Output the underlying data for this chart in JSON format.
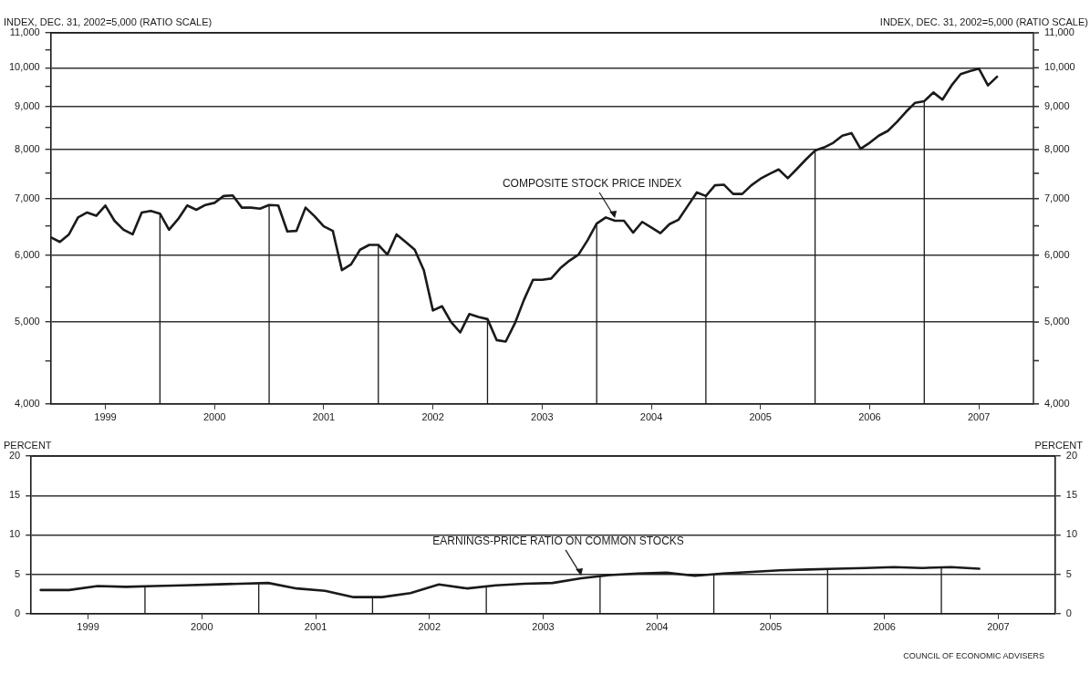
{
  "chart_data": [
    {
      "type": "line",
      "ylabel": "INDEX, DEC. 31, 2002=5,000 (RATIO SCALE)",
      "log": "y",
      "grid": "y",
      "line_style": "solid",
      "marker": "none",
      "x": [
        "1999-01",
        "1999-02",
        "1999-03",
        "1999-04",
        "1999-05",
        "1999-06",
        "1999-07",
        "1999-08",
        "1999-09",
        "1999-10",
        "1999-11",
        "1999-12",
        "2000-01",
        "2000-02",
        "2000-03",
        "2000-04",
        "2000-05",
        "2000-06",
        "2000-07",
        "2000-08",
        "2000-09",
        "2000-10",
        "2000-11",
        "2000-12",
        "2001-01",
        "2001-02",
        "2001-03",
        "2001-04",
        "2001-05",
        "2001-06",
        "2001-07",
        "2001-08",
        "2001-09",
        "2001-10",
        "2001-11",
        "2001-12",
        "2002-01",
        "2002-02",
        "2002-03",
        "2002-04",
        "2002-05",
        "2002-06",
        "2002-07",
        "2002-08",
        "2002-09",
        "2002-10",
        "2002-11",
        "2002-12",
        "2003-01",
        "2003-02",
        "2003-03",
        "2003-04",
        "2003-05",
        "2003-06",
        "2003-07",
        "2003-08",
        "2003-09",
        "2003-10",
        "2003-11",
        "2003-12",
        "2004-01",
        "2004-02",
        "2004-03",
        "2004-04",
        "2004-05",
        "2004-06",
        "2004-07",
        "2004-08",
        "2004-09",
        "2004-10",
        "2004-11",
        "2004-12",
        "2005-01",
        "2005-02",
        "2005-03",
        "2005-04",
        "2005-05",
        "2005-06",
        "2005-07",
        "2005-08",
        "2005-09",
        "2005-10",
        "2005-11",
        "2005-12",
        "2006-01",
        "2006-02",
        "2006-03",
        "2006-04",
        "2006-05",
        "2006-06",
        "2006-07",
        "2006-08",
        "2006-09",
        "2006-10",
        "2006-11",
        "2006-12",
        "2007-01",
        "2007-02",
        "2007-03",
        "2007-04",
        "2007-05",
        "2007-06",
        "2007-07",
        "2007-08",
        "2007-09"
      ],
      "series": [
        {
          "color": "#1a1a1a",
          "values": [
            6300,
            6220,
            6350,
            6650,
            6740,
            6680,
            6870,
            6590,
            6430,
            6350,
            6740,
            6770,
            6720,
            6430,
            6620,
            6870,
            6790,
            6880,
            6920,
            7050,
            7060,
            6830,
            6830,
            6810,
            6880,
            6870,
            6400,
            6410,
            6830,
            6670,
            6490,
            6410,
            5760,
            5850,
            6090,
            6170,
            6170,
            6010,
            6350,
            6220,
            6090,
            5760,
            5160,
            5220,
            5000,
            4860,
            5110,
            5070,
            5040,
            4760,
            4740,
            4980,
            5310,
            5610,
            5610,
            5630,
            5790,
            5910,
            6010,
            6250,
            6540,
            6650,
            6590,
            6590,
            6380,
            6570,
            6470,
            6370,
            6530,
            6610,
            6860,
            7120,
            7050,
            7260,
            7270,
            7090,
            7090,
            7260,
            7390,
            7490,
            7580,
            7400,
            7590,
            7790,
            7980,
            8050,
            8150,
            8310,
            8370,
            8020,
            8150,
            8310,
            8420,
            8630,
            8870,
            9090,
            9130,
            9350,
            9170,
            9530,
            9830,
            9910,
            9980,
            9530,
            9760
          ]
        }
      ],
      "xlim": [
        "1999-01",
        "2008-01"
      ],
      "xticks": [
        {
          "value": "1999-07",
          "label": "1999"
        },
        {
          "value": "2000-07",
          "label": "2000"
        },
        {
          "value": "2001-07",
          "label": "2001"
        },
        {
          "value": "2002-07",
          "label": "2002"
        },
        {
          "value": "2003-07",
          "label": "2003"
        },
        {
          "value": "2004-07",
          "label": "2004"
        },
        {
          "value": "2005-07",
          "label": "2005"
        },
        {
          "value": "2006-07",
          "label": "2006"
        },
        {
          "value": "2007-07",
          "label": "2007"
        }
      ],
      "ylim": [
        4000,
        11000
      ],
      "yticks": [
        {
          "value": 4000,
          "label": "4,000"
        },
        {
          "value": 4500,
          "label": null
        },
        {
          "value": 5000,
          "label": "5,000"
        },
        {
          "value": 5500,
          "label": null
        },
        {
          "value": 6000,
          "label": "6,000"
        },
        {
          "value": 6500,
          "label": null
        },
        {
          "value": 7000,
          "label": "7,000"
        },
        {
          "value": 7500,
          "label": null
        },
        {
          "value": 8000,
          "label": "8,000"
        },
        {
          "value": 8500,
          "label": null
        },
        {
          "value": 9000,
          "label": "9,000"
        },
        {
          "value": 9500,
          "label": null
        },
        {
          "value": 10000,
          "label": "10,000"
        },
        {
          "value": 10500,
          "label": null
        },
        {
          "value": 11000,
          "label": "11,000"
        }
      ],
      "ref_lines": [
        {
          "axis": "x",
          "value": "2000-01"
        },
        {
          "axis": "x",
          "value": "2001-01"
        },
        {
          "axis": "x",
          "value": "2002-01"
        },
        {
          "axis": "x",
          "value": "2003-01"
        },
        {
          "axis": "x",
          "value": "2004-01"
        },
        {
          "axis": "x",
          "value": "2005-01"
        },
        {
          "axis": "x",
          "value": "2006-01"
        },
        {
          "axis": "x",
          "value": "2007-01"
        }
      ],
      "annotations": [
        {
          "text": "COMPOSITE STOCK PRICE INDEX",
          "x": "2004-03",
          "y": 6590
        }
      ]
    },
    {
      "type": "line",
      "ylabel": "PERCENT",
      "y2label": "PERCENT",
      "grid": "y",
      "line_style": "solid",
      "marker": "none",
      "x": [
        "1999-02",
        "1999-05",
        "1999-08",
        "1999-11",
        "2000-02",
        "2000-05",
        "2000-08",
        "2000-11",
        "2001-02",
        "2001-05",
        "2001-08",
        "2001-11",
        "2002-02",
        "2002-05",
        "2002-08",
        "2002-11",
        "2003-02",
        "2003-05",
        "2003-08",
        "2003-11",
        "2004-02",
        "2004-05",
        "2004-08",
        "2004-11",
        "2005-02",
        "2005-05",
        "2005-08",
        "2005-11",
        "2006-02",
        "2006-05",
        "2006-08",
        "2006-11",
        "2007-02",
        "2007-05"
      ],
      "series": [
        {
          "color": "#1a1a1a",
          "values": [
            3.0,
            3.0,
            3.5,
            3.4,
            3.5,
            3.6,
            3.7,
            3.8,
            3.9,
            3.2,
            2.9,
            2.1,
            2.1,
            2.6,
            3.7,
            3.2,
            3.6,
            3.8,
            3.9,
            4.5,
            4.9,
            5.1,
            5.2,
            4.8,
            5.1,
            5.3,
            5.5,
            5.6,
            5.7,
            5.8,
            5.9,
            5.8,
            5.9,
            5.7
          ]
        }
      ],
      "xlim": [
        "1999-01",
        "2008-01"
      ],
      "xticks": [
        {
          "value": "1999-07",
          "label": "1999"
        },
        {
          "value": "2000-07",
          "label": "2000"
        },
        {
          "value": "2001-07",
          "label": "2001"
        },
        {
          "value": "2002-07",
          "label": "2002"
        },
        {
          "value": "2003-07",
          "label": "2003"
        },
        {
          "value": "2004-07",
          "label": "2004"
        },
        {
          "value": "2005-07",
          "label": "2005"
        },
        {
          "value": "2006-07",
          "label": "2006"
        },
        {
          "value": "2007-07",
          "label": "2007"
        }
      ],
      "ylim": [
        0,
        20
      ],
      "yticks": [
        0,
        5,
        10,
        15,
        20
      ],
      "y2lim": [
        0,
        20
      ],
      "y2ticks": [
        0,
        5,
        10,
        15,
        20
      ],
      "ref_lines": [
        {
          "axis": "x",
          "value": "2000-01"
        },
        {
          "axis": "x",
          "value": "2001-01"
        },
        {
          "axis": "x",
          "value": "2002-01"
        },
        {
          "axis": "x",
          "value": "2003-01"
        },
        {
          "axis": "x",
          "value": "2004-01"
        },
        {
          "axis": "x",
          "value": "2005-01"
        },
        {
          "axis": "x",
          "value": "2006-01"
        },
        {
          "axis": "x",
          "value": "2007-01"
        }
      ],
      "annotations": [
        {
          "text": "EARNINGS-PRICE RATIO ON COMMON STOCKS",
          "x": "2003-11",
          "y": 4.5
        },
        "COUNCIL OF ECONOMIC ADVISERS"
      ]
    }
  ]
}
